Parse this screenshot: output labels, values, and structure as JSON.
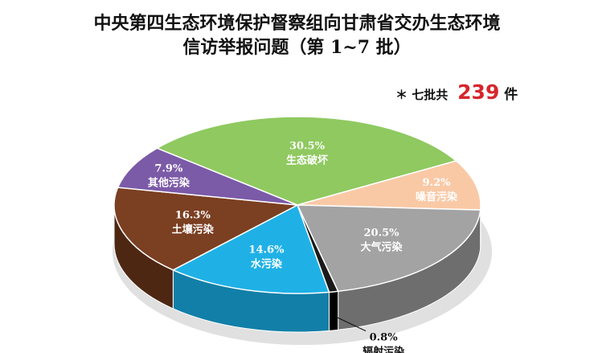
{
  "chart_data": {
    "type": "pie",
    "title_lines": [
      "中央第四生态环境保护督察组向甘肃省交办生态环境",
      "信访举报问题（第 1~7 批）"
    ],
    "total": {
      "prefix": "＊ 七批共",
      "value": "239",
      "suffix": "件"
    },
    "slices": [
      {
        "label": "生态破坏",
        "pct": "30.5%",
        "value": 30.5,
        "color": "#8fc960",
        "side": "#5f8f3c",
        "text_color": "#ffffff"
      },
      {
        "label": "噪音污染",
        "pct": "9.2%",
        "value": 9.2,
        "color": "#f9c9a6",
        "side": "#c9956f",
        "text_color": "#ffffff"
      },
      {
        "label": "大气污染",
        "pct": "20.5%",
        "value": 20.5,
        "color": "#a3a3a3",
        "side": "#6e6e6e",
        "text_color": "#ffffff"
      },
      {
        "label": "辐射污染",
        "pct": "0.8%",
        "value": 0.8,
        "color": "#1a1a1a",
        "side": "#000000",
        "text_color": "#111111"
      },
      {
        "label": "水污染",
        "pct": "14.6%",
        "value": 14.6,
        "color": "#1fb1e6",
        "side": "#127fa8",
        "text_color": "#ffffff"
      },
      {
        "label": "土壤污染",
        "pct": "16.3%",
        "value": 16.3,
        "color": "#7b3f22",
        "side": "#4e2713",
        "text_color": "#ffffff"
      },
      {
        "label": "其他污染",
        "pct": "7.9%",
        "value": 7.9,
        "color": "#7b5aa8",
        "side": "#513a73",
        "text_color": "#ffffff"
      }
    ]
  }
}
